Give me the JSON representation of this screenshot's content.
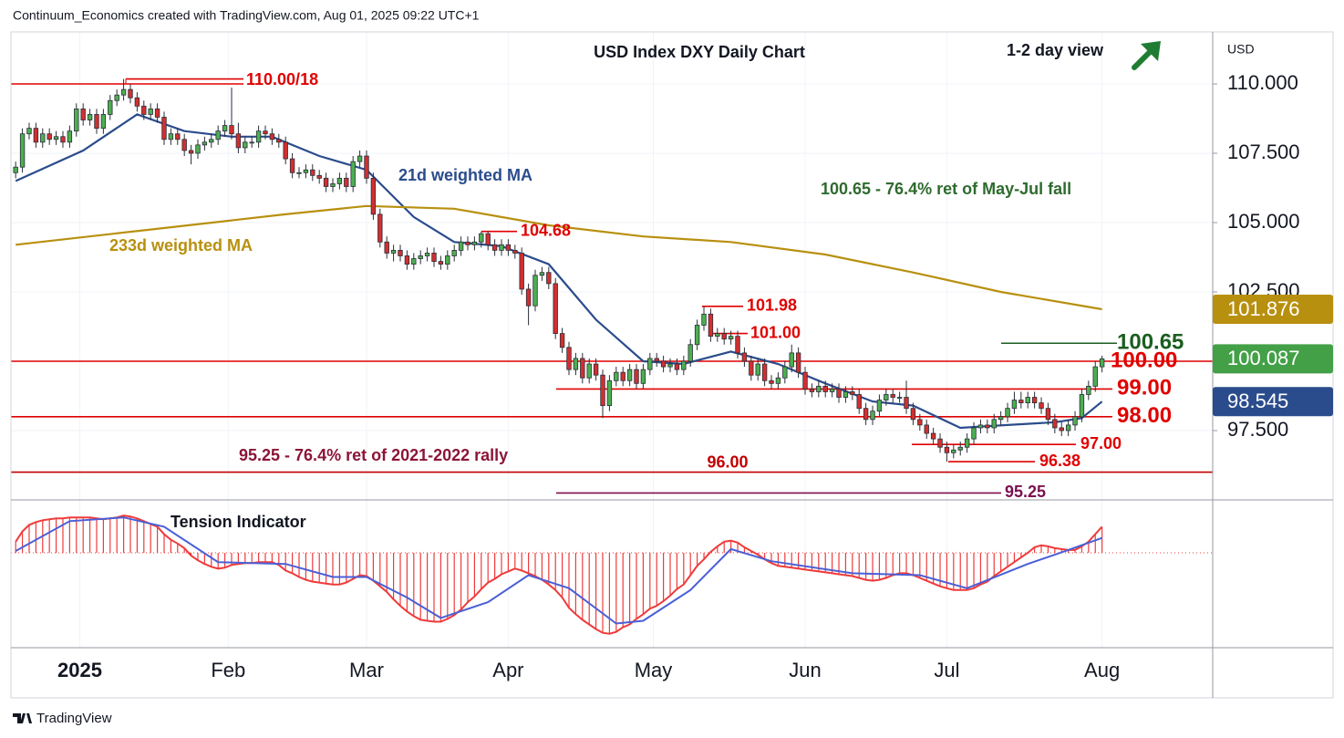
{
  "header": "Continuum_Economics created with TradingView.com, Aug 01, 2025 09:22 UTC+1",
  "footer": "TradingView",
  "chart_data": [
    {
      "type": "candlestick",
      "title": "USD Index DXY Daily Chart",
      "subtitle": "1-2 day view",
      "currency": "USD",
      "up_color": "#4caf50",
      "down_color": "#d32f2f",
      "xlim": [
        -0.7,
        177.4
      ],
      "xticks": [
        {
          "value": 9.5,
          "label": "2025"
        },
        {
          "value": 31.5,
          "label": "Feb"
        },
        {
          "value": 52,
          "label": "Mar"
        },
        {
          "value": 73,
          "label": "Apr"
        },
        {
          "value": 94.5,
          "label": "May"
        },
        {
          "value": 117,
          "label": "Jun"
        },
        {
          "value": 138,
          "label": "Jul"
        },
        {
          "value": 161,
          "label": "Aug"
        }
      ],
      "ylim": [
        95,
        111.875
      ],
      "yticks": [
        {
          "value": 110,
          "label": "110.000"
        },
        {
          "value": 107.5,
          "label": "107.500"
        },
        {
          "value": 105,
          "label": "105.000"
        },
        {
          "value": 102.5,
          "label": "102.500"
        },
        {
          "value": 97.5,
          "label": "97.500"
        }
      ],
      "grid": true,
      "open": [
        106.8,
        107.0,
        108.2,
        108.4,
        107.9,
        108.2,
        108.0,
        108.1,
        107.9,
        108.3,
        109.1,
        108.7,
        108.9,
        108.4,
        108.9,
        109.4,
        109.6,
        109.8,
        109.5,
        109.2,
        108.9,
        109.1,
        108.8,
        108.0,
        108.2,
        108.0,
        107.6,
        107.5,
        107.8,
        107.9,
        108.0,
        108.3,
        108.5,
        108.2,
        107.7,
        107.9,
        107.9,
        108.3,
        108.2,
        108.0,
        107.9,
        107.3,
        106.8,
        106.8,
        106.9,
        106.7,
        106.6,
        106.3,
        106.4,
        106.6,
        106.3,
        107.2,
        107.4,
        106.6,
        105.3,
        104.3,
        103.9,
        104.0,
        103.8,
        103.5,
        103.7,
        103.8,
        103.9,
        103.6,
        103.5,
        103.8,
        104.0,
        104.3,
        104.2,
        104.3,
        104.6,
        104.2,
        104.0,
        104.2,
        104.0,
        103.9,
        102.6,
        102.0,
        103.1,
        103.2,
        102.8,
        101.0,
        100.5,
        99.7,
        100.1,
        99.4,
        99.9,
        99.5,
        98.4,
        99.3,
        99.6,
        99.3,
        99.7,
        99.2,
        99.7,
        100.1,
        100.0,
        99.8,
        99.9,
        99.7,
        100.0,
        100.6,
        101.3,
        101.7,
        100.9,
        101.0,
        100.8,
        100.9,
        100.3,
        100.0,
        99.5,
        99.9,
        99.3,
        99.2,
        99.4,
        99.8,
        100.3,
        99.6,
        99.0,
        98.9,
        99.1,
        98.9,
        99.0,
        98.7,
        98.9,
        98.8,
        98.3,
        97.9,
        98.2,
        98.6,
        98.8,
        98.7,
        98.7,
        98.3,
        97.9,
        97.7,
        97.4,
        97.2,
        96.9,
        96.7,
        96.8,
        96.9,
        97.2,
        97.6,
        97.7,
        97.6,
        97.9,
        98.0,
        98.3,
        98.6,
        98.5,
        98.7,
        98.5,
        98.3,
        97.9,
        97.6,
        97.5,
        97.7,
        98.0,
        98.8,
        99.1,
        99.8
      ],
      "high": [
        107.2,
        108.4,
        108.6,
        108.6,
        108.4,
        108.4,
        108.3,
        108.3,
        108.5,
        109.3,
        109.3,
        109.1,
        109.1,
        109.1,
        109.6,
        109.8,
        110.18,
        110.0,
        109.7,
        109.4,
        109.3,
        109.3,
        109.0,
        108.4,
        108.4,
        108.2,
        107.8,
        108.0,
        108.1,
        108.2,
        108.5,
        108.7,
        109.87,
        108.6,
        108.1,
        108.1,
        108.5,
        108.5,
        108.4,
        108.2,
        108.1,
        107.5,
        107.0,
        107.1,
        107.1,
        106.9,
        106.8,
        106.6,
        106.8,
        106.8,
        107.4,
        107.6,
        107.6,
        106.8,
        105.5,
        104.5,
        104.2,
        104.2,
        104.0,
        103.9,
        104.0,
        104.1,
        104.1,
        103.8,
        104.0,
        104.2,
        104.5,
        104.5,
        104.5,
        104.68,
        104.68,
        104.4,
        104.4,
        104.4,
        104.2,
        104.1,
        102.8,
        103.3,
        103.4,
        103.4,
        103.0,
        101.2,
        100.7,
        100.3,
        100.3,
        100.1,
        100.1,
        99.7,
        99.5,
        99.8,
        99.8,
        99.9,
        99.9,
        99.9,
        100.3,
        100.3,
        100.2,
        100.1,
        100.1,
        100.2,
        100.8,
        101.5,
        101.98,
        101.9,
        101.2,
        101.2,
        101.1,
        101.1,
        100.5,
        100.2,
        100.1,
        100.1,
        99.5,
        99.6,
        100.0,
        100.6,
        100.5,
        99.8,
        99.2,
        99.3,
        99.3,
        99.2,
        99.2,
        99.1,
        99.1,
        99.0,
        98.5,
        98.4,
        98.8,
        99.0,
        99.0,
        98.9,
        99.3,
        98.5,
        98.1,
        97.9,
        97.6,
        97.4,
        97.1,
        97.0,
        97.1,
        97.4,
        97.8,
        97.9,
        97.9,
        98.1,
        98.2,
        98.5,
        98.9,
        98.9,
        98.9,
        98.9,
        98.7,
        98.5,
        98.1,
        97.8,
        97.9,
        98.2,
        99.0,
        99.3,
        100.0,
        100.2
      ],
      "low": [
        106.6,
        106.8,
        108.0,
        107.7,
        107.7,
        107.8,
        107.8,
        107.7,
        107.7,
        108.1,
        108.5,
        108.5,
        108.2,
        108.2,
        108.7,
        109.2,
        109.4,
        109.3,
        109.0,
        108.7,
        108.7,
        108.6,
        107.8,
        107.8,
        107.8,
        107.4,
        107.1,
        107.3,
        107.6,
        107.7,
        107.8,
        108.1,
        108.0,
        107.5,
        107.5,
        107.7,
        107.7,
        108.0,
        107.8,
        107.7,
        107.1,
        106.6,
        106.6,
        106.6,
        106.5,
        106.4,
        106.1,
        106.1,
        106.2,
        106.1,
        106.1,
        107.0,
        106.4,
        105.1,
        104.1,
        103.7,
        103.6,
        103.6,
        103.3,
        103.3,
        103.5,
        103.6,
        103.4,
        103.3,
        103.3,
        103.6,
        103.8,
        104.0,
        104.0,
        104.1,
        104.0,
        103.8,
        103.8,
        103.8,
        103.7,
        102.4,
        101.3,
        101.8,
        102.9,
        102.6,
        100.8,
        100.3,
        99.5,
        99.5,
        99.2,
        99.2,
        99.3,
        97.95,
        98.2,
        99.1,
        99.1,
        99.1,
        99.0,
        99.0,
        99.5,
        99.8,
        99.6,
        99.6,
        99.5,
        99.5,
        99.8,
        100.4,
        101.1,
        100.7,
        100.7,
        100.6,
        100.6,
        100.1,
        99.8,
        99.3,
        99.3,
        99.1,
        99.0,
        99.0,
        99.2,
        99.6,
        99.4,
        98.8,
        98.7,
        98.7,
        98.7,
        98.7,
        98.5,
        98.5,
        98.6,
        98.1,
        97.7,
        97.7,
        98.0,
        98.4,
        98.5,
        98.5,
        98.1,
        97.7,
        97.5,
        97.2,
        97.0,
        96.7,
        96.38,
        96.5,
        96.6,
        96.7,
        97.0,
        97.4,
        97.4,
        97.4,
        97.7,
        97.8,
        98.1,
        98.3,
        98.3,
        98.3,
        98.1,
        97.7,
        97.4,
        97.3,
        97.3,
        97.5,
        97.8,
        98.6,
        98.9,
        99.6
      ],
      "close": [
        107.0,
        108.2,
        108.4,
        107.9,
        108.2,
        108.0,
        108.1,
        107.9,
        108.3,
        109.1,
        108.7,
        108.9,
        108.4,
        108.9,
        109.4,
        109.6,
        109.8,
        109.5,
        109.2,
        108.9,
        109.1,
        108.8,
        108.0,
        108.2,
        108.0,
        107.6,
        107.5,
        107.8,
        107.9,
        108.0,
        108.3,
        108.5,
        108.2,
        107.7,
        107.9,
        107.9,
        108.3,
        108.2,
        108.0,
        107.9,
        107.3,
        106.8,
        106.8,
        106.9,
        106.7,
        106.6,
        106.3,
        106.4,
        106.6,
        106.3,
        107.2,
        107.4,
        106.6,
        105.3,
        104.3,
        103.9,
        104.0,
        103.8,
        103.5,
        103.7,
        103.8,
        103.9,
        103.6,
        103.5,
        103.8,
        104.0,
        104.3,
        104.2,
        104.3,
        104.6,
        104.2,
        104.0,
        104.2,
        104.0,
        103.9,
        102.6,
        102.0,
        103.1,
        103.2,
        102.8,
        101.0,
        100.5,
        99.7,
        100.1,
        99.4,
        99.9,
        99.5,
        98.4,
        99.3,
        99.6,
        99.3,
        99.7,
        99.2,
        99.7,
        100.1,
        100.0,
        99.8,
        99.9,
        99.7,
        100.0,
        100.6,
        101.3,
        101.7,
        100.9,
        101.0,
        100.8,
        100.9,
        100.3,
        100.0,
        99.5,
        99.9,
        99.3,
        99.2,
        99.4,
        99.8,
        100.3,
        99.6,
        99.0,
        98.9,
        99.1,
        98.9,
        99.0,
        98.7,
        98.9,
        98.8,
        98.3,
        97.9,
        98.2,
        98.6,
        98.8,
        98.7,
        98.7,
        98.3,
        97.9,
        97.7,
        97.4,
        97.2,
        96.9,
        96.7,
        96.8,
        96.9,
        97.2,
        97.6,
        97.7,
        97.6,
        97.9,
        98.0,
        98.3,
        98.6,
        98.5,
        98.7,
        98.5,
        98.3,
        97.9,
        97.6,
        97.5,
        97.7,
        98.0,
        98.8,
        99.1,
        99.8,
        100.087
      ],
      "last_color": "#43a047",
      "series": [
        {
          "name": "21d weighted MA",
          "color": "#2b4c8c",
          "x": [
            0,
            10,
            18,
            25,
            32,
            38,
            45,
            52,
            59,
            65,
            72,
            79,
            86,
            93,
            99,
            106,
            113,
            120,
            127,
            133,
            140,
            147,
            154,
            158,
            161
          ],
          "values": [
            106.5,
            107.6,
            108.9,
            108.3,
            108.1,
            108.1,
            107.4,
            106.9,
            105.2,
            104.3,
            104.15,
            103.5,
            101.5,
            100.0,
            99.9,
            100.35,
            99.9,
            99.2,
            98.55,
            98.4,
            97.6,
            97.7,
            97.8,
            97.95,
            98.545
          ]
        },
        {
          "name": "233d weighted MA",
          "color": "#b8900f",
          "x": [
            0,
            20,
            40,
            52,
            65,
            79,
            93,
            106,
            120,
            133,
            146,
            161
          ],
          "values": [
            104.2,
            104.75,
            105.3,
            105.6,
            105.5,
            104.9,
            104.5,
            104.3,
            103.85,
            103.2,
            102.5,
            101.876
          ]
        }
      ],
      "levels": [
        {
          "value": 110.0,
          "high": 110.18,
          "label": "110.00/18",
          "color": "#e00000"
        },
        {
          "value": 104.68,
          "label": "104.68",
          "color": "#e00000"
        },
        {
          "value": 101.98,
          "label": "101.98",
          "color": "#e00000"
        },
        {
          "value": 101.0,
          "label": "101.00",
          "color": "#e00000"
        },
        {
          "value": 100.65,
          "label": "100.65",
          "color": "#1b5e20"
        },
        {
          "value": 100.0,
          "label": "100.00",
          "color": "#e00000"
        },
        {
          "value": 99.0,
          "label": "99.00",
          "color": "#e00000"
        },
        {
          "value": 98.0,
          "label": "98.00",
          "color": "#e00000"
        },
        {
          "value": 97.0,
          "label": "97.00",
          "color": "#e00000"
        },
        {
          "value": 96.38,
          "label": "96.38",
          "color": "#e00000"
        },
        {
          "value": 96.0,
          "label": "96.00",
          "color": "#c00000"
        },
        {
          "value": 95.25,
          "label": "95.25",
          "color": "#7b1050"
        }
      ],
      "annotations": [
        {
          "text": "100.65 - 76.4% ret of May-Jul fall",
          "color": "#2e6b2e"
        },
        {
          "text": "95.25 - 76.4% ret of 2021-2022 rally",
          "color": "#8b1538"
        }
      ]
    },
    {
      "type": "oscillator",
      "title": "Tension Indicator",
      "ylim": [
        -10,
        5
      ],
      "series": [
        {
          "color": "#ef3b3b",
          "values": [
            1.2,
            2.3,
            3.0,
            3.3,
            3.5,
            3.6,
            3.7,
            3.7,
            3.8,
            3.8,
            3.8,
            3.8,
            3.7,
            3.6,
            3.7,
            3.8,
            4.0,
            3.9,
            3.7,
            3.4,
            3.1,
            2.8,
            2.0,
            1.4,
            1.0,
            0.5,
            -0.3,
            -0.8,
            -1.2,
            -1.5,
            -1.7,
            -1.6,
            -1.3,
            -1.2,
            -1.1,
            -1.1,
            -1.0,
            -1.0,
            -1.0,
            -1.3,
            -1.9,
            -2.2,
            -2.6,
            -2.9,
            -3.1,
            -3.2,
            -3.3,
            -3.4,
            -3.4,
            -3.2,
            -2.8,
            -2.4,
            -2.5,
            -3.0,
            -3.6,
            -4.2,
            -5.0,
            -5.7,
            -6.3,
            -6.8,
            -7.2,
            -7.3,
            -7.4,
            -7.4,
            -7.1,
            -6.7,
            -6.1,
            -5.3,
            -4.7,
            -3.9,
            -3.2,
            -2.8,
            -2.3,
            -2.0,
            -1.7,
            -1.9,
            -2.2,
            -2.5,
            -2.9,
            -3.4,
            -4.0,
            -4.8,
            -5.9,
            -6.6,
            -7.2,
            -7.7,
            -8.2,
            -8.6,
            -8.7,
            -8.5,
            -8.0,
            -7.7,
            -7.1,
            -6.6,
            -6.0,
            -5.7,
            -5.2,
            -4.6,
            -3.9,
            -3.4,
            -2.4,
            -1.4,
            -0.7,
            0.1,
            0.7,
            1.2,
            1.3,
            1.1,
            0.6,
            0.2,
            -0.2,
            -0.7,
            -1.1,
            -1.4,
            -1.5,
            -1.6,
            -1.7,
            -1.8,
            -1.9,
            -2.0,
            -2.1,
            -2.2,
            -2.3,
            -2.4,
            -2.5,
            -2.7,
            -2.9,
            -3.0,
            -2.9,
            -2.7,
            -2.4,
            -2.2,
            -2.2,
            -2.4,
            -2.7,
            -3.0,
            -3.3,
            -3.6,
            -3.8,
            -4.0,
            -4.0,
            -4.0,
            -3.8,
            -3.4,
            -3.1,
            -2.5,
            -2.0,
            -1.5,
            -1.0,
            -0.5,
            0.0,
            0.6,
            0.8,
            0.7,
            0.5,
            0.4,
            0.3,
            0.3,
            0.7,
            1.2,
            2.0,
            2.8
          ]
        },
        {
          "color": "#4a5fd6",
          "x": [
            0,
            8,
            16,
            22,
            30,
            40,
            47,
            52,
            58,
            63,
            70,
            76,
            82,
            89,
            93,
            100,
            106,
            112,
            124,
            134,
            141,
            150,
            156,
            161
          ],
          "values": [
            0.2,
            3.4,
            3.8,
            2.8,
            -1.0,
            -1.2,
            -2.6,
            -2.6,
            -4.8,
            -7.0,
            -5.3,
            -2.4,
            -3.8,
            -7.6,
            -7.3,
            -4.0,
            0.4,
            -0.9,
            -2.2,
            -2.4,
            -3.8,
            -1.2,
            0.3,
            1.6
          ]
        }
      ]
    }
  ]
}
